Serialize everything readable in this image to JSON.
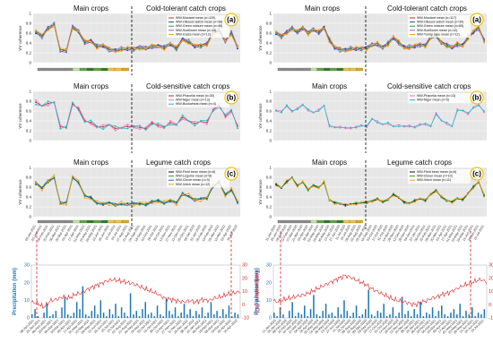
{
  "crop_headings": {
    "main": "Main crops",
    "tolerant": "Cold-tolerant catch crops",
    "sensitive": "Cold-sensitive catch crops",
    "legume": "Legume catch crops"
  },
  "panel_letters": [
    "(a)",
    "(b)",
    "(c)"
  ],
  "y_axis_label": "VV coherence",
  "climate_axis_labels": {
    "left": "Precipitation (mm)",
    "right": "Temperature (°C)"
  },
  "colors": {
    "temperature": "#d62728",
    "precipitation": "#1f77b4",
    "divider": "#000000",
    "window": "#d62728"
  },
  "chart_data": [
    {
      "type": "line",
      "side": "left",
      "panel": "a",
      "ylim": [
        0,
        1
      ],
      "yticks": [
        "0",
        "0.2",
        "0.4",
        "0.6",
        "0.8",
        "1"
      ],
      "legend": [
        "WW-Mustard mean (n=120)",
        "WW-Oilseed radish mean (n=38)",
        "WW-Green mixture mean (n=48)",
        "WW-Sunflower mean (n=13)",
        "WW-Grass mean (n=12)"
      ],
      "colors": [
        "#d62728",
        "#1f4e9c",
        "#2ca02c",
        "#9467bd",
        "#ff9f1c"
      ],
      "x_count": 34,
      "split_index": 13,
      "base": [
        0.62,
        0.55,
        0.7,
        0.76,
        0.25,
        0.26,
        0.72,
        0.62,
        0.42,
        0.45,
        0.32,
        0.34,
        0.28,
        0.25,
        0.26,
        0.28,
        0.29,
        0.31,
        0.28,
        0.33,
        0.35,
        0.3,
        0.37,
        0.3,
        0.48,
        0.41,
        0.33,
        0.36,
        0.38,
        0.6,
        0.66,
        0.45,
        0.6,
        0.3
      ],
      "offsets": [
        0.02,
        -0.03,
        0.04,
        0.06,
        -0.05
      ]
    },
    {
      "type": "line",
      "side": "left",
      "panel": "b",
      "ylim": [
        0,
        1
      ],
      "yticks": [
        "0",
        "0.2",
        "0.4",
        "0.6",
        "0.8",
        "1"
      ],
      "legend": [
        "WW-Phacelia mean (n=30)",
        "WW-Niger mean (n=13)",
        "WW-Buckwheat mean (n=4)"
      ],
      "colors": [
        "#d62728",
        "#e377c2",
        "#17becf"
      ],
      "x_count": 34,
      "split_index": 13,
      "base": [
        0.78,
        0.68,
        0.76,
        0.8,
        0.27,
        0.25,
        0.76,
        0.66,
        0.38,
        0.36,
        0.3,
        0.28,
        0.3,
        0.25,
        0.28,
        0.28,
        0.26,
        0.28,
        0.26,
        0.34,
        0.3,
        0.29,
        0.37,
        0.3,
        0.47,
        0.42,
        0.34,
        0.37,
        0.38,
        0.64,
        0.7,
        0.48,
        0.62,
        0.3
      ],
      "offsets": [
        0.02,
        0.05,
        -0.05
      ]
    },
    {
      "type": "line",
      "side": "left",
      "panel": "c",
      "ylim": [
        0,
        1
      ],
      "yticks": [
        "0",
        "0.2",
        "0.4",
        "0.6",
        "0.8",
        "1"
      ],
      "legend": [
        "WW-Field bean mean (n=8)",
        "WW-Legume mean (n=8)",
        "WW-Clover mean (n=9)",
        "WW-Vetch mean (n=12)"
      ],
      "colors": [
        "#111111",
        "#2ca02c",
        "#1f77b4",
        "#ff9f1c"
      ],
      "x_count": 34,
      "split_index": 13,
      "base": [
        0.68,
        0.58,
        0.72,
        0.8,
        0.27,
        0.28,
        0.8,
        0.7,
        0.42,
        0.38,
        0.28,
        0.26,
        0.28,
        0.24,
        0.26,
        0.25,
        0.26,
        0.27,
        0.25,
        0.3,
        0.32,
        0.28,
        0.33,
        0.28,
        0.46,
        0.42,
        0.34,
        0.36,
        0.38,
        0.62,
        0.7,
        0.44,
        0.55,
        0.3
      ],
      "offsets": [
        0.0,
        0.03,
        -0.03,
        0.05
      ]
    },
    {
      "type": "line",
      "side": "right",
      "panel": "a",
      "ylim": [
        0,
        1
      ],
      "yticks": [
        "0",
        "0.2",
        "0.4",
        "0.6",
        "0.8",
        "1"
      ],
      "legend": [
        "WW-Mustard mean (n=117)",
        "WW-Oilseed radish mean (n=30)",
        "WW-Green mixture mean (n=65)",
        "WW-Sunflower mean (n=12)",
        "WW-Turnip rape mean (n=12)"
      ],
      "colors": [
        "#d62728",
        "#1f4e9c",
        "#2ca02c",
        "#9467bd",
        "#ff9f1c"
      ],
      "x_count": 40,
      "split_index": 16,
      "base": [
        0.6,
        0.55,
        0.62,
        0.68,
        0.62,
        0.72,
        0.6,
        0.66,
        0.62,
        0.72,
        0.45,
        0.3,
        0.28,
        0.26,
        0.27,
        0.28,
        0.3,
        0.3,
        0.35,
        0.38,
        0.32,
        0.38,
        0.5,
        0.42,
        0.32,
        0.3,
        0.33,
        0.38,
        0.35,
        0.5,
        0.55,
        0.42,
        0.35,
        0.3,
        0.38,
        0.36,
        0.5,
        0.62,
        0.72,
        0.45
      ],
      "offsets": [
        0.02,
        -0.03,
        0.04,
        0.06,
        -0.05
      ]
    },
    {
      "type": "line",
      "side": "right",
      "panel": "b",
      "ylim": [
        0,
        1
      ],
      "yticks": [
        "0",
        "0.2",
        "0.4",
        "0.6",
        "0.8",
        "1"
      ],
      "legend": [
        "WW-Phacelia mean (n=13)",
        "WW-Niger mean (n=9)"
      ],
      "colors": [
        "#e377c2",
        "#17becf"
      ],
      "x_count": 40,
      "split_index": 16,
      "base": [
        0.62,
        0.58,
        0.7,
        0.6,
        0.65,
        0.72,
        0.62,
        0.58,
        0.62,
        0.7,
        0.3,
        0.28,
        0.27,
        0.25,
        0.26,
        0.28,
        0.3,
        0.28,
        0.45,
        0.38,
        0.32,
        0.35,
        0.3,
        0.3,
        0.28,
        0.3,
        0.28,
        0.32,
        0.33,
        0.3,
        0.55,
        0.4,
        0.35,
        0.3,
        0.62,
        0.6,
        0.55,
        0.68,
        0.72,
        0.58
      ],
      "offsets": [
        0.02,
        -0.02
      ]
    },
    {
      "type": "line",
      "side": "right",
      "panel": "c",
      "ylim": [
        0,
        1
      ],
      "yticks": [
        "0",
        "0.2",
        "0.4",
        "0.6",
        "0.8",
        "1"
      ],
      "legend": [
        "WW-Field bean mean (n=6)",
        "WW-Clover mean (n=10)",
        "WW-Vetch mean (n=11)"
      ],
      "colors": [
        "#111111",
        "#2ca02c",
        "#ff9f1c"
      ],
      "x_count": 40,
      "split_index": 16,
      "base": [
        0.65,
        0.58,
        0.72,
        0.8,
        0.62,
        0.7,
        0.56,
        0.64,
        0.58,
        0.7,
        0.35,
        0.28,
        0.26,
        0.24,
        0.26,
        0.26,
        0.28,
        0.3,
        0.32,
        0.35,
        0.3,
        0.36,
        0.45,
        0.38,
        0.3,
        0.28,
        0.32,
        0.36,
        0.34,
        0.46,
        0.52,
        0.4,
        0.34,
        0.3,
        0.36,
        0.35,
        0.48,
        0.6,
        0.7,
        0.44
      ],
      "offsets": [
        0.0,
        0.03,
        -0.03
      ]
    },
    {
      "type": "bar+line",
      "side": "left",
      "panel": "climate",
      "precip_ylim": [
        0,
        30
      ],
      "temp_ylim": [
        -10,
        30
      ],
      "precip_ticks": [
        "0",
        "10",
        "20",
        "30"
      ],
      "temp_ticks": [
        "-10",
        "0",
        "10",
        "20",
        "30"
      ],
      "x_labels": [
        "09-Jan-2021",
        "23-Jan-2021",
        "06-Feb-2021",
        "20-Feb-2021",
        "06-Mar-2021",
        "20-Mar-2021",
        "03-Apr-2021",
        "17-Apr-2021",
        "01-May-2021",
        "15-May-2021",
        "29-May-2021",
        "12-Jun-2021",
        "26-Jun-2021",
        "10-Jul-2021",
        "24-Jul-2021",
        "07-Aug-2021",
        "21-Aug-2021",
        "04-Sep-2021",
        "18-Sep-2021",
        "02-Oct-2021",
        "16-Oct-2021",
        "30-Oct-2021",
        "13-Nov-2021",
        "27-Nov-2021",
        "11-Dec-2021",
        "25-Dec-2021",
        "08-Jan-2022",
        "22-Jan-2022",
        "05-Feb-2022",
        "19-Feb-2022",
        "05-Mar-2022",
        "19-Mar-2022",
        "02-Apr-2022",
        "16-Apr-2022"
      ],
      "temp_keypoints": [
        2,
        1,
        -2,
        3,
        4,
        6,
        5,
        8,
        9,
        12,
        14,
        16,
        18,
        19,
        18,
        17,
        16,
        14,
        12,
        10,
        8,
        5,
        4,
        3,
        2,
        3,
        2,
        4,
        3,
        5,
        6,
        8,
        9,
        10
      ],
      "precip": [
        2,
        5,
        1,
        0,
        3,
        8,
        1,
        2,
        4,
        0,
        6,
        12,
        2,
        1,
        3,
        9,
        5,
        18,
        2,
        1,
        4,
        7,
        2,
        10,
        3,
        1,
        5,
        2,
        8,
        1,
        6,
        3,
        1,
        14,
        2,
        4,
        1,
        5,
        9,
        2,
        3,
        1,
        7,
        2,
        1,
        11,
        4,
        2,
        6,
        1,
        3,
        8,
        2,
        5,
        1,
        4,
        2,
        6,
        1,
        3,
        9,
        2,
        4,
        1,
        5,
        2,
        7,
        1,
        3,
        2
      ]
    },
    {
      "type": "bar+line",
      "side": "right",
      "panel": "climate",
      "precip_ylim": [
        0,
        30
      ],
      "temp_ylim": [
        -10,
        30
      ],
      "precip_ticks": [
        "0",
        "10",
        "20",
        "30"
      ],
      "temp_ticks": [
        "-10",
        "0",
        "10",
        "20",
        "30"
      ],
      "x_labels": [
        "11-Jan-2020",
        "25-Jan-2020",
        "08-Feb-2020",
        "22-Feb-2020",
        "07-Mar-2020",
        "21-Mar-2020",
        "04-Apr-2020",
        "18-Apr-2020",
        "02-May-2020",
        "16-May-2020",
        "30-May-2020",
        "13-Jun-2020",
        "27-Jun-2020",
        "11-Jul-2020",
        "25-Jul-2020",
        "08-Aug-2020",
        "22-Aug-2020",
        "05-Sep-2020",
        "19-Sep-2020",
        "03-Oct-2020",
        "17-Oct-2020",
        "31-Oct-2020",
        "14-Nov-2020",
        "28-Nov-2020",
        "12-Dec-2020",
        "26-Dec-2020",
        "09-Jan-2021",
        "23-Jan-2021",
        "06-Feb-2021",
        "20-Feb-2021",
        "06-Mar-2021",
        "20-Mar-2021",
        "03-Apr-2021",
        "17-Apr-2021",
        "01-May-2021",
        "15-May-2021",
        "29-May-2021",
        "12-Jun-2021",
        "26-Jun-2021",
        "10-Jul-2021"
      ],
      "temp_keypoints": [
        3,
        2,
        4,
        5,
        6,
        7,
        8,
        10,
        12,
        14,
        16,
        18,
        20,
        22,
        21,
        19,
        17,
        15,
        12,
        10,
        8,
        6,
        4,
        3,
        2,
        1,
        0,
        2,
        3,
        5,
        6,
        8,
        9,
        11,
        13,
        15,
        16,
        18,
        19,
        17
      ],
      "precip": [
        3,
        1,
        6,
        2,
        0,
        4,
        9,
        1,
        3,
        2,
        7,
        1,
        5,
        13,
        2,
        1,
        4,
        8,
        2,
        3,
        1,
        6,
        2,
        10,
        4,
        1,
        3,
        7,
        1,
        2,
        5,
        16,
        2,
        1,
        4,
        3,
        8,
        1,
        2,
        6,
        1,
        3,
        12,
        2,
        4,
        1,
        5,
        2,
        9,
        1,
        3,
        2,
        6,
        1,
        4,
        7,
        2,
        1,
        3,
        5,
        2,
        8,
        1,
        4,
        2,
        6,
        1,
        3,
        2,
        5
      ]
    }
  ]
}
